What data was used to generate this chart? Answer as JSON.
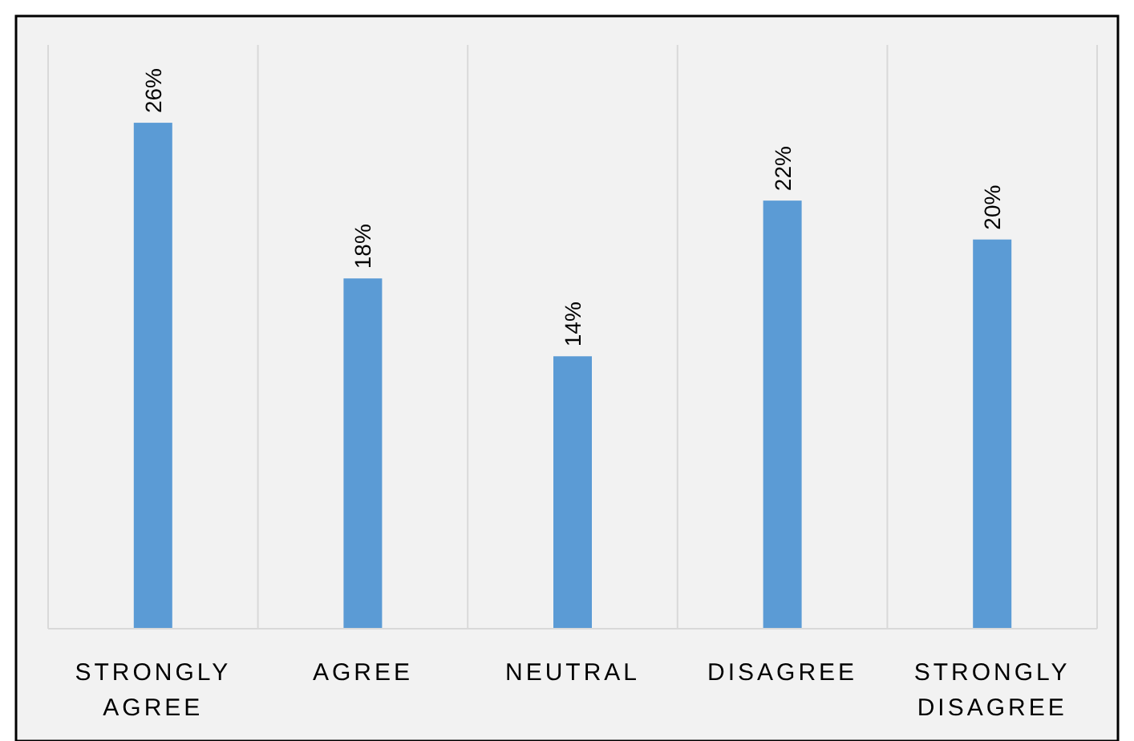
{
  "chart_data": {
    "type": "bar",
    "categories": [
      "STRONGLY AGREE",
      "AGREE",
      "NEUTRAL",
      "DISAGREE",
      "STRONGLY DISAGREE"
    ],
    "values": [
      26,
      18,
      14,
      22,
      20
    ],
    "value_labels": [
      "26%",
      "18%",
      "14%",
      "22%",
      "20%"
    ],
    "color": "#5b9bd5",
    "ylim": [
      0,
      30
    ],
    "grid": "x"
  }
}
